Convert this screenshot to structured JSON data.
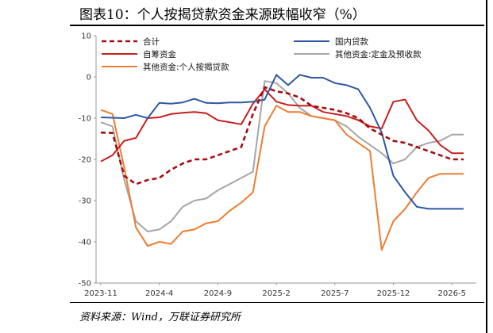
{
  "header": {
    "title": "图表10：个人按揭贷款资金来源跌幅收窄（%）"
  },
  "footer": {
    "source": "资料来源：Wind，万联证券研究所"
  },
  "colors": {
    "total": "#A50E12",
    "self_raised": "#C81E1E",
    "personal_mortgage": "#ED7D31",
    "domestic_loans": "#2E58A3",
    "other_deposits_prepay": "#A6A6A6"
  },
  "chart_data": {
    "type": "line",
    "title": "",
    "xlabel": "",
    "ylabel": "",
    "ylim": [
      -50,
      10
    ],
    "yticks": [
      10,
      0,
      -10,
      -20,
      -30,
      -40,
      -50
    ],
    "x": [
      "2023-11",
      "2023-12",
      "2024-1",
      "2024-2",
      "2024-3",
      "2024-4",
      "2024-5",
      "2024-6",
      "2024-7",
      "2024-8",
      "2024-9",
      "2024-10",
      "2024-11",
      "2024-12",
      "2025-1",
      "2025-2",
      "2025-3",
      "2025-4",
      "2025-5",
      "2025-6",
      "2025-7",
      "2025-8",
      "2025-9",
      "2025-10",
      "2025-11",
      "2025-12",
      "2026-1",
      "2026-2",
      "2026-3",
      "2026-4",
      "2026-5",
      "2026-6"
    ],
    "xticks": [
      "2023-11",
      "2024-4",
      "2024-9",
      "2025-2",
      "2025-7",
      "2025-12",
      "2026-5"
    ],
    "legend_placement": "top",
    "series": [
      {
        "name": "合计",
        "color_key": "total",
        "dashed": true,
        "values": [
          -13.5,
          -13.6,
          -24.0,
          -26.0,
          -25.0,
          -24.5,
          -22.5,
          -21.0,
          -20.0,
          -20.0,
          -19.0,
          -18.0,
          -17.0,
          -9.0,
          -2.5,
          -3.5,
          -4.0,
          -5.0,
          -7.0,
          -7.5,
          -8.0,
          -8.8,
          -10.0,
          -12.5,
          -14.0,
          -15.5,
          -16.0,
          -17.0,
          -18.0,
          -19.0,
          -20.0,
          -20.0
        ]
      },
      {
        "name": "自筹资金",
        "color_key": "self_raised",
        "dashed": false,
        "values": [
          -20.5,
          -19.0,
          -15.5,
          -14.8,
          -10.0,
          -9.8,
          -9.0,
          -8.7,
          -8.5,
          -8.8,
          -10.5,
          -11.0,
          -11.5,
          -6.5,
          -3.0,
          -6.0,
          -6.8,
          -7.0,
          -7.0,
          -8.5,
          -9.0,
          -9.5,
          -10.5,
          -12.0,
          -12.5,
          -6.0,
          -5.5,
          -10.5,
          -13.0,
          -16.5,
          -18.5,
          -18.5
        ]
      },
      {
        "name": "其他资金:个人按揭贷款",
        "color_key": "personal_mortgage",
        "dashed": false,
        "values": [
          -8.0,
          -9.0,
          -22.0,
          -36.5,
          -41.0,
          -40.0,
          -40.5,
          -37.5,
          -37.0,
          -35.5,
          -35.0,
          -32.5,
          -30.5,
          -28.0,
          -12.0,
          -7.0,
          -8.5,
          -8.5,
          -9.5,
          -10.0,
          -10.5,
          -14.0,
          -16.0,
          -18.0,
          -42.0,
          -35.0,
          -32.0,
          -28.0,
          -24.5,
          -23.5,
          -23.5,
          -23.5
        ]
      },
      {
        "name": "国内贷款",
        "color_key": "domestic_loans",
        "dashed": false,
        "values": [
          -9.8,
          -9.9,
          -10.0,
          -9.2,
          -10.0,
          -6.3,
          -6.5,
          -6.2,
          -5.3,
          -6.3,
          -6.4,
          -6.2,
          -6.2,
          -6.0,
          -5.5,
          0.5,
          -2.0,
          0.5,
          -0.2,
          -0.2,
          -1.5,
          -2.0,
          -3.0,
          -7.5,
          -13.5,
          -24.0,
          -28.0,
          -31.5,
          -32.0,
          -32.0,
          -32.0,
          -32.0
        ]
      },
      {
        "name": "其他资金:定金及预收款",
        "color_key": "other_deposits_prepay",
        "dashed": false,
        "values": [
          -11.0,
          -12.0,
          -25.0,
          -35.0,
          -37.5,
          -37.0,
          -35.0,
          -31.5,
          -30.0,
          -29.5,
          -27.5,
          -26.0,
          -24.5,
          -23.0,
          -1.0,
          -1.5,
          -4.0,
          -7.5,
          -9.5,
          -10.0,
          -10.5,
          -12.0,
          -14.5,
          -16.5,
          -18.5,
          -21.0,
          -20.0,
          -17.0,
          -16.0,
          -15.5,
          -14.0,
          -14.0
        ]
      }
    ]
  }
}
